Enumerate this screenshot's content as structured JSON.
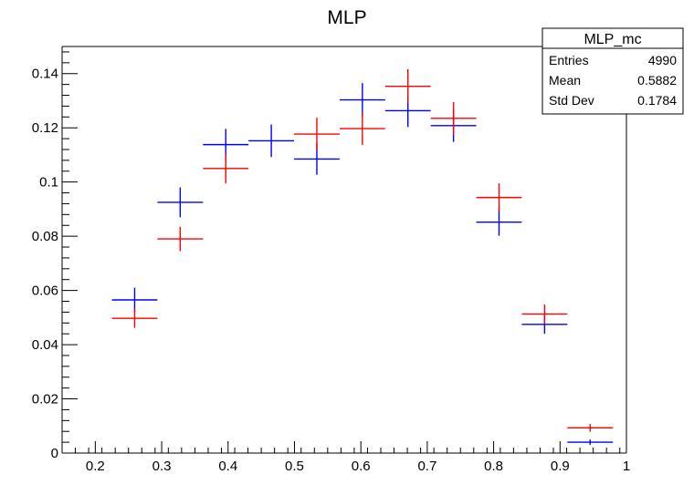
{
  "chart_data": {
    "type": "scatter",
    "title": "MLP",
    "xlabel": "",
    "ylabel": "",
    "xlim": [
      0.15,
      1.0
    ],
    "ylim": [
      0,
      0.15
    ],
    "x_tick_labels": [
      "0.2",
      "0.3",
      "0.4",
      "0.5",
      "0.6",
      "0.7",
      "0.8",
      "0.9",
      "1"
    ],
    "x_ticks": [
      0.2,
      0.3,
      0.4,
      0.5,
      0.6,
      0.7,
      0.8,
      0.9,
      1.0
    ],
    "y_tick_labels": [
      "0",
      "0.02",
      "0.04",
      "0.06",
      "0.08",
      "0.1",
      "0.12",
      "0.14"
    ],
    "y_ticks": [
      0,
      0.02,
      0.04,
      0.06,
      0.08,
      0.1,
      0.12,
      0.14
    ],
    "grid": false,
    "x_bin_edges": [
      0.225,
      0.2936,
      0.3622,
      0.4308,
      0.4994,
      0.568,
      0.6366,
      0.7052,
      0.7738,
      0.8424,
      0.911,
      0.9796
    ],
    "series": [
      {
        "color": "#0000ff",
        "x": [
          0.2593,
          0.3279,
          0.3965,
          0.4651,
          0.5337,
          0.6023,
          0.6709,
          0.7395,
          0.8081,
          0.8767,
          0.9453
        ],
        "values": [
          0.0565,
          0.0925,
          0.1138,
          0.1152,
          0.1085,
          0.1303,
          0.1263,
          0.1208,
          0.0852,
          0.0475,
          0.004
        ],
        "errors": [
          0.0045,
          0.0055,
          0.0058,
          0.006,
          0.0058,
          0.0062,
          0.006,
          0.006,
          0.005,
          0.0035,
          0.001
        ]
      },
      {
        "color": "#ff0000",
        "x": [
          0.2593,
          0.3279,
          0.3965,
          0.4651,
          0.5337,
          0.6023,
          0.6709,
          0.7395,
          0.8081,
          0.8767,
          0.9453
        ],
        "values": [
          0.0497,
          0.079,
          0.105,
          null,
          0.1177,
          0.1197,
          0.1353,
          0.1235,
          0.0943,
          0.0513,
          0.0093
        ],
        "errors": [
          0.0035,
          0.0045,
          0.0055,
          null,
          0.006,
          0.006,
          0.0063,
          0.006,
          0.0052,
          0.0035,
          0.0014
        ]
      }
    ]
  },
  "stats_box": {
    "name": "MLP_mc",
    "rows": [
      {
        "label": "Entries",
        "value": "4990"
      },
      {
        "label": "Mean",
        "value": "0.5882"
      },
      {
        "label": "Std Dev",
        "value": "0.1784"
      }
    ]
  }
}
